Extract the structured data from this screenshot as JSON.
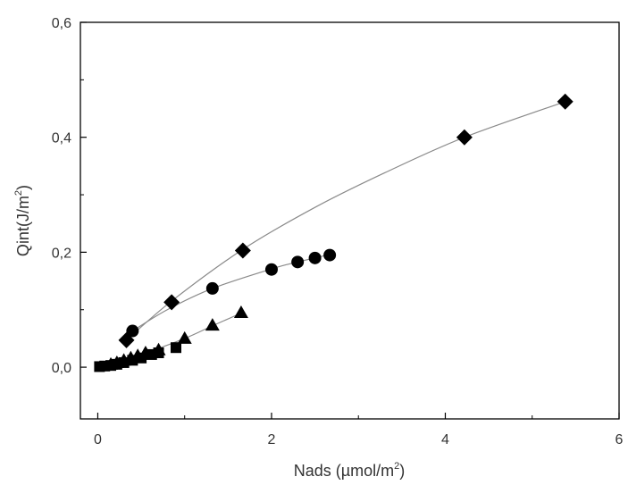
{
  "chart_data": {
    "type": "scatter",
    "xlabel": "Nads (µmol/m2)",
    "xlabel_main": "Nads (µmol/m",
    "xlabel_sup": "2",
    "xlabel_close": ")",
    "ylabel": "Qint(J/m2)",
    "ylabel_main": "Qint(J/m",
    "ylabel_sup": "2",
    "ylabel_close": ")",
    "xlim": [
      -0.2,
      6
    ],
    "ylim": [
      -0.09,
      0.6
    ],
    "x_ticks": [
      0,
      2,
      4,
      6
    ],
    "x_tick_labels": [
      "0",
      "2",
      "4",
      "6"
    ],
    "y_ticks": [
      0.0,
      0.2,
      0.4,
      0.6
    ],
    "y_tick_labels": [
      "0,0",
      "0,2",
      "0,4",
      "0,6"
    ],
    "grid": false,
    "colors": {
      "marker": "#000000",
      "fit_line": "#8a8a8a",
      "axis": "#000000"
    },
    "series": [
      {
        "marker": "diamond",
        "points": [
          [
            0.33,
            0.047
          ],
          [
            0.85,
            0.113
          ],
          [
            1.67,
            0.203
          ],
          [
            4.22,
            0.4
          ],
          [
            5.38,
            0.462
          ]
        ],
        "fit": [
          [
            0.33,
            0.047
          ],
          [
            0.85,
            0.115
          ],
          [
            1.67,
            0.205
          ],
          [
            2.5,
            0.278
          ],
          [
            3.3,
            0.338
          ],
          [
            4.22,
            0.4
          ],
          [
            5.38,
            0.462
          ]
        ]
      },
      {
        "marker": "circle",
        "points": [
          [
            0.4,
            0.063
          ],
          [
            1.32,
            0.137
          ],
          [
            2.0,
            0.17
          ],
          [
            2.3,
            0.183
          ],
          [
            2.5,
            0.19
          ],
          [
            2.67,
            0.195
          ]
        ],
        "fit": [
          [
            0.4,
            0.063
          ],
          [
            0.8,
            0.1
          ],
          [
            1.32,
            0.137
          ],
          [
            2.0,
            0.171
          ],
          [
            2.3,
            0.183
          ],
          [
            2.67,
            0.196
          ]
        ]
      },
      {
        "marker": "triangle",
        "points": [
          [
            0.15,
            0.005
          ],
          [
            0.22,
            0.008
          ],
          [
            0.3,
            0.012
          ],
          [
            0.38,
            0.016
          ],
          [
            0.46,
            0.02
          ],
          [
            0.55,
            0.025
          ],
          [
            0.7,
            0.03
          ],
          [
            1.0,
            0.05
          ],
          [
            1.32,
            0.073
          ],
          [
            1.65,
            0.095
          ]
        ],
        "fit": [
          [
            0.1,
            0.003
          ],
          [
            0.5,
            0.022
          ],
          [
            1.0,
            0.05
          ],
          [
            1.32,
            0.072
          ],
          [
            1.65,
            0.094
          ]
        ]
      },
      {
        "marker": "square",
        "points": [
          [
            0.02,
            0.001
          ],
          [
            0.08,
            0.002
          ],
          [
            0.15,
            0.003
          ],
          [
            0.22,
            0.005
          ],
          [
            0.3,
            0.008
          ],
          [
            0.4,
            0.012
          ],
          [
            0.5,
            0.016
          ],
          [
            0.62,
            0.022
          ],
          [
            0.7,
            0.025
          ],
          [
            0.9,
            0.034
          ]
        ],
        "fit": []
      }
    ]
  }
}
